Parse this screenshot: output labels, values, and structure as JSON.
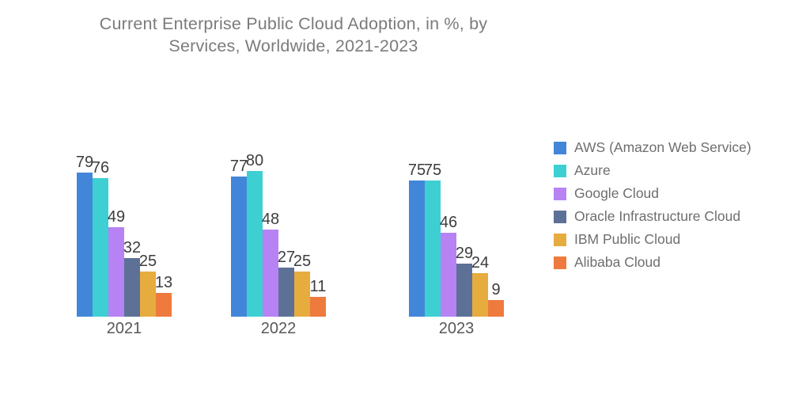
{
  "chart_data": {
    "type": "bar",
    "title": "Current Enterprise Public Cloud Adoption, in %, by Services, Worldwide, 2021-2023",
    "title_lines": [
      "Current Enterprise Public Cloud Adoption, in %, by",
      "Services, Worldwide, 2021-2023"
    ],
    "categories": [
      "2021",
      "2022",
      "2023"
    ],
    "series": [
      {
        "name": "AWS (Amazon Web Service)",
        "color": "#4286d9",
        "values": [
          79,
          77,
          75
        ]
      },
      {
        "name": "Azure",
        "color": "#3ecfd3",
        "values": [
          76,
          80,
          75
        ]
      },
      {
        "name": "Google Cloud",
        "color": "#b682f4",
        "values": [
          49,
          48,
          46
        ]
      },
      {
        "name": "Oracle Infrastructure Cloud",
        "color": "#5d7196",
        "values": [
          32,
          27,
          29
        ]
      },
      {
        "name": "IBM Public Cloud",
        "color": "#e7ac3e",
        "values": [
          25,
          25,
          24
        ]
      },
      {
        "name": "Alibaba Cloud",
        "color": "#ef7a3d",
        "values": [
          13,
          11,
          9
        ]
      }
    ],
    "ylim": [
      0,
      80
    ],
    "grid": false,
    "value_labels": true,
    "legend_position": "right",
    "colors": {
      "title_text": "#7b7b7b",
      "value_label_text": "#3d3d3d",
      "category_label_text": "#585858",
      "legend_text": "#6e6e6e",
      "background": "#ffffff"
    }
  }
}
